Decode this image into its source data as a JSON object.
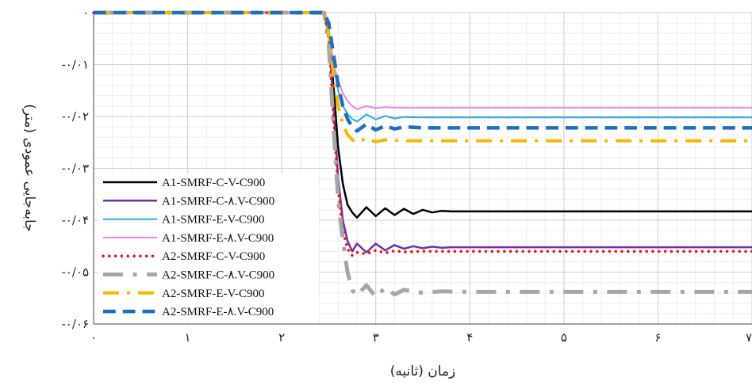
{
  "chart_data": {
    "type": "line",
    "xlabel": "زمان (ثانیه)",
    "ylabel": "جابه‌جایی عمودی (متر)",
    "xlim": [
      0,
      7
    ],
    "ylim": [
      -0.06,
      0
    ],
    "x_ticks": [
      {
        "value": 0,
        "label": "۰"
      },
      {
        "value": 1,
        "label": "۱"
      },
      {
        "value": 2,
        "label": "۲"
      },
      {
        "value": 3,
        "label": "۳"
      },
      {
        "value": 4,
        "label": "۴"
      },
      {
        "value": 5,
        "label": "۵"
      },
      {
        "value": 6,
        "label": "۶"
      },
      {
        "value": 7,
        "label": "۷"
      }
    ],
    "y_ticks": [
      {
        "value": 0,
        "label": "۰"
      },
      {
        "value": -0.01,
        "label": "-۰/۰۱"
      },
      {
        "value": -0.02,
        "label": "-۰/۰۲"
      },
      {
        "value": -0.03,
        "label": "-۰/۰۳"
      },
      {
        "value": -0.04,
        "label": "-۰/۰۴"
      },
      {
        "value": -0.05,
        "label": "-۰/۰۵"
      },
      {
        "value": -0.06,
        "label": "-۰/۰۶"
      }
    ],
    "grid": true,
    "legend_position": "bottom-left",
    "series": [
      {
        "name": "A1-SMRF-C-V-C900",
        "color": "#000000",
        "style": "solid",
        "width": 2.5,
        "x": [
          0,
          2.45,
          2.5,
          2.55,
          2.6,
          2.65,
          2.7,
          2.75,
          2.8,
          2.9,
          3.0,
          3.1,
          3.2,
          3.3,
          3.4,
          3.5,
          3.6,
          3.7,
          3.8,
          7.0
        ],
        "y": [
          0,
          0,
          -0.004,
          -0.014,
          -0.026,
          -0.033,
          -0.037,
          -0.0385,
          -0.0395,
          -0.0375,
          -0.0392,
          -0.0377,
          -0.039,
          -0.0378,
          -0.0388,
          -0.038,
          -0.0385,
          -0.0382,
          -0.0383,
          -0.0383
        ]
      },
      {
        "name": "A1-SMRF-C-۸.V-C900",
        "color": "#7030a0",
        "style": "solid",
        "width": 2.5,
        "x": [
          0,
          2.45,
          2.5,
          2.55,
          2.6,
          2.65,
          2.7,
          2.75,
          2.8,
          2.9,
          3.0,
          3.1,
          3.2,
          3.3,
          3.4,
          3.5,
          3.6,
          3.7,
          3.8,
          7.0
        ],
        "y": [
          0,
          0,
          -0.004,
          -0.018,
          -0.032,
          -0.04,
          -0.044,
          -0.046,
          -0.0445,
          -0.0462,
          -0.0445,
          -0.0458,
          -0.0448,
          -0.0455,
          -0.045,
          -0.0454,
          -0.0451,
          -0.0453,
          -0.0452,
          -0.0452
        ]
      },
      {
        "name": "A1-SMRF-E-V-C900",
        "color": "#29abe2",
        "style": "solid",
        "width": 2,
        "x": [
          0,
          2.45,
          2.5,
          2.55,
          2.6,
          2.65,
          2.7,
          2.75,
          2.8,
          2.9,
          3.0,
          3.1,
          3.2,
          3.3,
          3.5,
          7.0
        ],
        "y": [
          0,
          0,
          -0.003,
          -0.01,
          -0.015,
          -0.018,
          -0.0195,
          -0.0205,
          -0.021,
          -0.0196,
          -0.0206,
          -0.0199,
          -0.0204,
          -0.0201,
          -0.0202,
          -0.0202
        ]
      },
      {
        "name": "A1-SMRF-E-۸.V-C900",
        "color": "#ee82ee",
        "style": "solid",
        "width": 2,
        "x": [
          0,
          2.45,
          2.5,
          2.55,
          2.6,
          2.65,
          2.7,
          2.75,
          2.8,
          2.9,
          3.0,
          3.1,
          3.2,
          3.4,
          7.0
        ],
        "y": [
          0,
          0,
          -0.003,
          -0.01,
          -0.013,
          -0.0155,
          -0.017,
          -0.018,
          -0.0186,
          -0.018,
          -0.0184,
          -0.0182,
          -0.0183,
          -0.0183,
          -0.0183
        ]
      },
      {
        "name": "A2-SMRF-C-V-C900",
        "color": "#e8141b",
        "style": "dotted",
        "width": 3.5,
        "x": [
          0,
          2.45,
          2.5,
          2.55,
          2.6,
          2.65,
          2.7,
          2.75,
          2.8,
          2.9,
          3.0,
          3.1,
          3.2,
          3.3,
          3.5,
          7.0
        ],
        "y": [
          0,
          0,
          -0.005,
          -0.02,
          -0.034,
          -0.042,
          -0.0455,
          -0.0468,
          -0.0462,
          -0.0465,
          -0.0458,
          -0.0463,
          -0.0459,
          -0.0461,
          -0.046,
          -0.046
        ]
      },
      {
        "name": "A2-SMRF-C-۸.V-C900",
        "color": "#a6a6a6",
        "style": "dashdot",
        "width": 5,
        "x": [
          0,
          2.45,
          2.5,
          2.55,
          2.6,
          2.65,
          2.7,
          2.75,
          2.8,
          2.9,
          3.0,
          3.1,
          3.2,
          3.3,
          3.5,
          3.7,
          4.0,
          7.0
        ],
        "y": [
          0,
          0,
          -0.006,
          -0.022,
          -0.036,
          -0.044,
          -0.05,
          -0.0535,
          -0.0545,
          -0.0525,
          -0.0548,
          -0.053,
          -0.0543,
          -0.0534,
          -0.054,
          -0.0537,
          -0.0538,
          -0.0538
        ]
      },
      {
        "name": "A2-SMRF-E-V-C900",
        "color": "#f5b800",
        "style": "dashdot",
        "width": 4,
        "x": [
          0,
          2.45,
          2.5,
          2.55,
          2.6,
          2.65,
          2.7,
          2.75,
          2.8,
          2.9,
          3.0,
          3.1,
          3.3,
          7.0
        ],
        "y": [
          0,
          0,
          -0.004,
          -0.012,
          -0.018,
          -0.0215,
          -0.0235,
          -0.0245,
          -0.025,
          -0.0242,
          -0.0249,
          -0.0245,
          -0.0247,
          -0.0247
        ]
      },
      {
        "name": "A2-SMRF-E-۸.V-C900",
        "color": "#1f6fbf",
        "style": "dashed",
        "width": 4.5,
        "x": [
          0,
          2.45,
          2.5,
          2.55,
          2.6,
          2.65,
          2.7,
          2.75,
          2.8,
          2.9,
          3.0,
          3.1,
          3.2,
          3.3,
          3.5,
          7.0
        ],
        "y": [
          0,
          0,
          -0.002,
          -0.008,
          -0.014,
          -0.018,
          -0.0205,
          -0.022,
          -0.0228,
          -0.0215,
          -0.0226,
          -0.0218,
          -0.0224,
          -0.022,
          -0.0222,
          -0.0222
        ]
      }
    ]
  }
}
